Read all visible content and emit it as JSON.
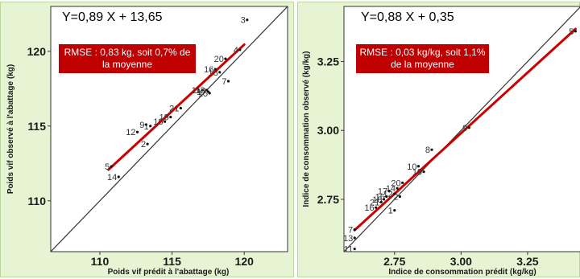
{
  "panels": [
    {
      "equation": "Y=0,89 X + 13,65",
      "rmse": "RMSE : 0,83 kg, soit 0,7% de la moyenne"
    },
    {
      "equation": "Y=0,88 X + 0,35",
      "rmse": "RMSE : 0,03 kg/kg, soit 1,1% de la moyenne"
    }
  ],
  "colors": {
    "panel_bg": "#e7f4d4",
    "plot_bg": "#ffffff",
    "fit_line": "#cc0000",
    "identity_line": "#333333",
    "rmse_box": "#c00000"
  },
  "chart_data": [
    {
      "type": "scatter",
      "title": "",
      "xlabel": "Poids vif prédit à l'abattage (kg)",
      "ylabel": "Poids vif observé à l'abattage (kg)",
      "xlim": [
        106.6,
        123
      ],
      "ylim": [
        106.6,
        123
      ],
      "xticks": [
        "110",
        "115",
        "120"
      ],
      "yticks": [
        "110",
        "115",
        "120"
      ],
      "identity_line": true,
      "fit": {
        "slope": 0.89,
        "intercept": 13.65,
        "x_range": [
          110.6,
          120
        ]
      },
      "points": [
        {
          "label": "1",
          "x": 113.5,
          "y": 115.0
        },
        {
          "label": "2",
          "x": 113.3,
          "y": 113.8
        },
        {
          "label": "3",
          "x": 120.2,
          "y": 122.1
        },
        {
          "label": "4",
          "x": 119.7,
          "y": 120.1
        },
        {
          "label": "5",
          "x": 110.8,
          "y": 112.3
        },
        {
          "label": "7",
          "x": 118.9,
          "y": 118.0
        },
        {
          "label": "9",
          "x": 113.2,
          "y": 115.1
        },
        {
          "label": "10",
          "x": 114.5,
          "y": 115.3
        },
        {
          "label": "11",
          "x": 117.1,
          "y": 117.4
        },
        {
          "label": "12",
          "x": 112.6,
          "y": 114.6
        },
        {
          "label": "13",
          "x": 117.4,
          "y": 117.4
        },
        {
          "label": "14",
          "x": 111.3,
          "y": 111.6
        },
        {
          "label": "15",
          "x": 117.6,
          "y": 117.2
        },
        {
          "label": "16",
          "x": 118.0,
          "y": 118.8
        },
        {
          "label": "17",
          "x": 117.5,
          "y": 117.3
        },
        {
          "label": "18",
          "x": 118.3,
          "y": 118.6
        },
        {
          "label": "19",
          "x": 114.9,
          "y": 115.6
        },
        {
          "label": "20",
          "x": 118.7,
          "y": 119.5
        },
        {
          "label": "21",
          "x": 115.6,
          "y": 116.2
        }
      ]
    },
    {
      "type": "scatter",
      "title": "",
      "xlabel": "Indice de consommation prédit (kg/kg)",
      "ylabel": "Indice de consommation observé (kg/kg)",
      "xlim": [
        2.56,
        3.45
      ],
      "ylim": [
        2.56,
        3.45
      ],
      "xticks": [
        "2.75",
        "3.00",
        "3.25"
      ],
      "yticks": [
        "2.75",
        "3.00",
        "3.25"
      ],
      "identity_line": true,
      "fit": {
        "slope": 0.88,
        "intercept": 0.35,
        "x_range": [
          2.6,
          3.43
        ]
      },
      "points": [
        {
          "label": "1",
          "x": 2.75,
          "y": 2.71
        },
        {
          "label": "2",
          "x": 2.77,
          "y": 2.76
        },
        {
          "label": "5",
          "x": 3.43,
          "y": 3.36
        },
        {
          "label": "7",
          "x": 2.6,
          "y": 2.64
        },
        {
          "label": "8",
          "x": 2.89,
          "y": 2.93
        },
        {
          "label": "9",
          "x": 3.03,
          "y": 3.01
        },
        {
          "label": "10",
          "x": 2.84,
          "y": 2.87
        },
        {
          "label": "11",
          "x": 2.6,
          "y": 2.57
        },
        {
          "label": "12",
          "x": 2.75,
          "y": 2.77
        },
        {
          "label": "13",
          "x": 2.6,
          "y": 2.61
        },
        {
          "label": "14",
          "x": 2.76,
          "y": 2.79
        },
        {
          "label": "15",
          "x": 2.72,
          "y": 2.76
        },
        {
          "label": "16",
          "x": 2.68,
          "y": 2.72
        },
        {
          "label": "17",
          "x": 2.73,
          "y": 2.78
        },
        {
          "label": "18",
          "x": 2.71,
          "y": 2.75
        },
        {
          "label": "19",
          "x": 2.86,
          "y": 2.85
        },
        {
          "label": "20",
          "x": 2.78,
          "y": 2.81
        },
        {
          "label": "21",
          "x": 2.7,
          "y": 2.74
        }
      ]
    }
  ]
}
